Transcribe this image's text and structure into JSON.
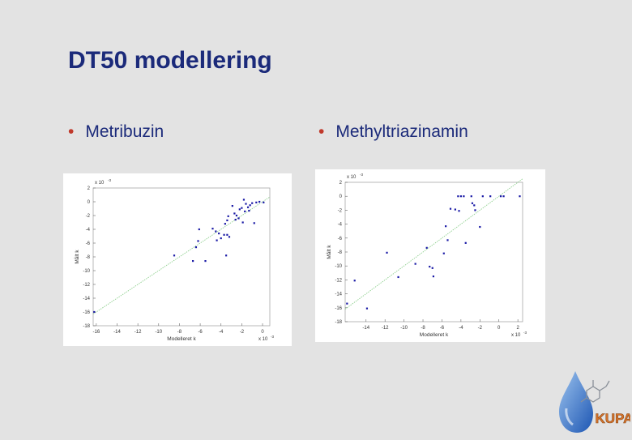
{
  "slide": {
    "title": "DT50 modellering",
    "bullets": [
      "Metribuzin",
      "Methyltriazinamin"
    ],
    "logo_text": "KUPA"
  },
  "chart_data": [
    {
      "type": "scatter",
      "title": "",
      "xlabel": "Modelleret k",
      "ylabel": "Målt k",
      "x_scale_label": "x 10",
      "x_scale_exp": "-3",
      "y_scale_label": "x 10",
      "y_scale_exp": "-3",
      "xlim": [
        -16.3,
        0.7
      ],
      "ylim": [
        -18,
        2
      ],
      "xticks": [
        -16,
        -14,
        -12,
        -10,
        -8,
        -6,
        -4,
        -2,
        0
      ],
      "xtick_labels": [
        "-16",
        "-14",
        "-12",
        "-10",
        "-8",
        "-6",
        "-4",
        "-2",
        "0"
      ],
      "yticks": [
        -18,
        -16,
        -14,
        -12,
        -10,
        -8,
        -6,
        -4,
        -2,
        0,
        2
      ],
      "ytick_labels": [
        "-18",
        "-16",
        "-14",
        "-12",
        "-10",
        "-8",
        "-6",
        "-4",
        "-2",
        "0",
        "2"
      ],
      "line": {
        "x": [
          -16.3,
          0.7
        ],
        "y": [
          -16.3,
          0.7
        ],
        "color": "#8fd08f"
      },
      "point_color": "#1a1aa6",
      "points": [
        [
          -8.5,
          -7.8
        ],
        [
          -6.4,
          -6.6
        ],
        [
          -6.1,
          -4.0
        ],
        [
          -6.2,
          -5.7
        ],
        [
          -6.7,
          -8.6
        ],
        [
          -5.5,
          -8.6
        ],
        [
          -4.8,
          -3.9
        ],
        [
          -4.5,
          -4.3
        ],
        [
          -4.2,
          -4.6
        ],
        [
          -4.0,
          -5.3
        ],
        [
          -4.4,
          -5.6
        ],
        [
          -3.7,
          -4.8
        ],
        [
          -3.6,
          -3.2
        ],
        [
          -3.4,
          -2.7
        ],
        [
          -3.3,
          -2.1
        ],
        [
          -3.4,
          -4.8
        ],
        [
          -3.2,
          -5.1
        ],
        [
          -3.5,
          -7.8
        ],
        [
          -2.9,
          -0.6
        ],
        [
          -2.7,
          -1.7
        ],
        [
          -2.5,
          -2.0
        ],
        [
          -2.3,
          -2.4
        ],
        [
          -2.2,
          -1.1
        ],
        [
          -2.0,
          -0.9
        ],
        [
          -1.9,
          -3.0
        ],
        [
          -1.7,
          -1.4
        ],
        [
          -1.6,
          -0.3
        ],
        [
          -1.4,
          -0.8
        ],
        [
          -1.3,
          -1.3
        ],
        [
          -1.2,
          -0.5
        ],
        [
          -1.0,
          -0.2
        ],
        [
          -0.8,
          -3.1
        ],
        [
          -0.6,
          -0.1
        ],
        [
          -0.3,
          0.0
        ],
        [
          0.1,
          -0.1
        ],
        [
          -1.8,
          0.3
        ],
        [
          -2.6,
          -2.6
        ],
        [
          -16.2,
          -16.0
        ]
      ]
    },
    {
      "type": "scatter",
      "title": "",
      "xlabel": "Modelleret k",
      "ylabel": "Målt k",
      "x_scale_label": "x 10",
      "x_scale_exp": "-3",
      "y_scale_label": "x 10",
      "y_scale_exp": "-3",
      "xlim": [
        -16.2,
        2.5
      ],
      "ylim": [
        -18,
        2
      ],
      "xticks": [
        -14,
        -12,
        -10,
        -8,
        -6,
        -4,
        -2,
        0,
        2
      ],
      "xtick_labels": [
        "-14",
        "-12",
        "-10",
        "-8",
        "-6",
        "-4",
        "-2",
        "0",
        "2"
      ],
      "yticks": [
        -18,
        -16,
        -14,
        -12,
        -10,
        -8,
        -6,
        -4,
        -2,
        0,
        2
      ],
      "ytick_labels": [
        "-18",
        "-16",
        "-14",
        "-12",
        "-10",
        "-8",
        "-6",
        "-4",
        "-2",
        "0",
        "2"
      ],
      "line": {
        "x": [
          -16.2,
          2.5
        ],
        "y": [
          -16.2,
          2.5
        ],
        "color": "#8fd08f"
      },
      "point_color": "#1a1aa6",
      "points": [
        [
          -16.0,
          -15.4
        ],
        [
          -15.2,
          -12.1
        ],
        [
          -13.9,
          -16.1
        ],
        [
          -11.8,
          -8.1
        ],
        [
          -10.6,
          -11.6
        ],
        [
          -8.8,
          -9.7
        ],
        [
          -7.6,
          -7.4
        ],
        [
          -7.3,
          -10.1
        ],
        [
          -7.0,
          -10.3
        ],
        [
          -6.9,
          -11.5
        ],
        [
          -5.8,
          -8.2
        ],
        [
          -5.6,
          -4.3
        ],
        [
          -5.4,
          -6.3
        ],
        [
          -5.1,
          -1.8
        ],
        [
          -4.6,
          -1.9
        ],
        [
          -4.2,
          -2.1
        ],
        [
          -4.3,
          0.0
        ],
        [
          -4.0,
          0.0
        ],
        [
          -3.7,
          0.0
        ],
        [
          -3.5,
          -6.7
        ],
        [
          -2.9,
          0.0
        ],
        [
          -2.8,
          -1.0
        ],
        [
          -2.6,
          -1.3
        ],
        [
          -2.5,
          -2.0
        ],
        [
          -2.0,
          -4.4
        ],
        [
          -1.7,
          0.0
        ],
        [
          -0.9,
          0.0
        ],
        [
          0.2,
          0.0
        ],
        [
          0.5,
          0.0
        ],
        [
          2.2,
          0.0
        ]
      ]
    }
  ]
}
